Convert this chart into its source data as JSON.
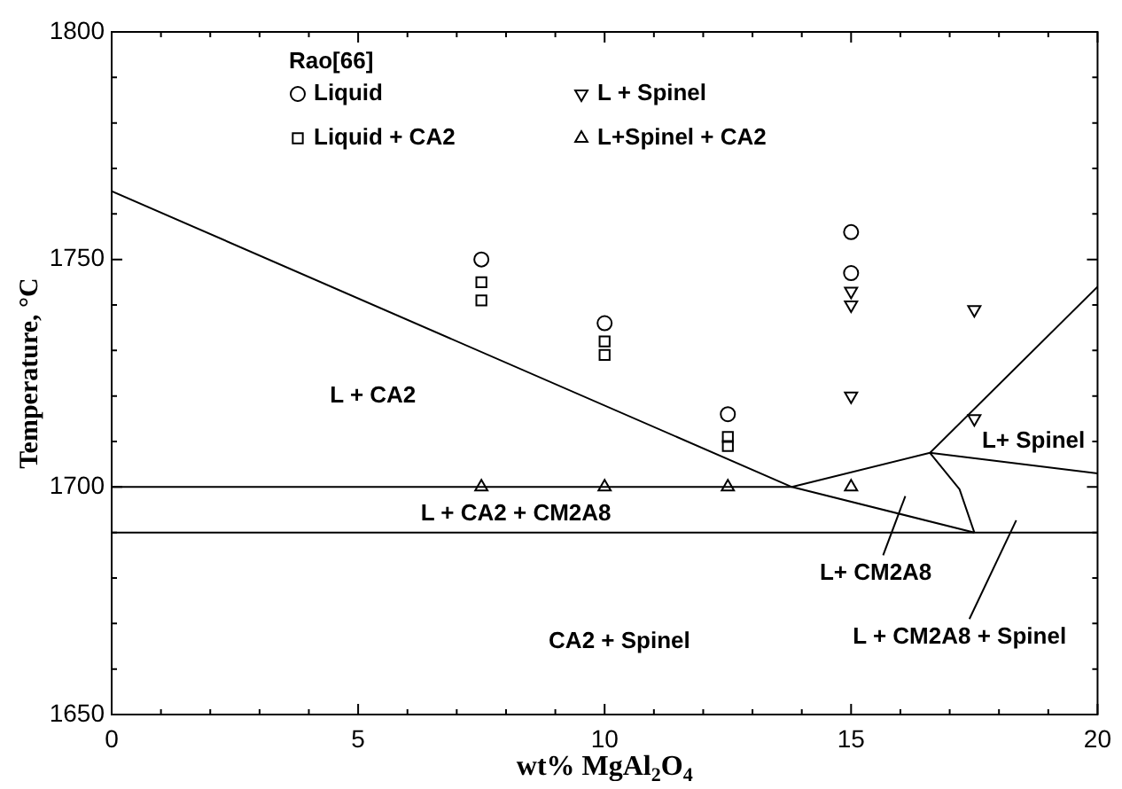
{
  "chart_data": {
    "type": "scatter",
    "xlabel": "wt% MgAl$_{2}$O$_{4}$",
    "ylabel": "Temperature, °C",
    "legend_title": "Rao[66]",
    "legend": "top",
    "grid": false,
    "xlim": [
      0,
      20
    ],
    "ylim": [
      1650,
      1800
    ],
    "xticks": [
      0,
      {
        "value": 1,
        "label": null
      },
      {
        "value": 2,
        "label": null
      },
      {
        "value": 3,
        "label": null
      },
      {
        "value": 4,
        "label": null
      },
      5,
      {
        "value": 6,
        "label": null
      },
      {
        "value": 7,
        "label": null
      },
      {
        "value": 8,
        "label": null
      },
      {
        "value": 9,
        "label": null
      },
      10,
      {
        "value": 11,
        "label": null
      },
      {
        "value": 12,
        "label": null
      },
      {
        "value": 13,
        "label": null
      },
      {
        "value": 14,
        "label": null
      },
      15,
      {
        "value": 16,
        "label": null
      },
      {
        "value": 17,
        "label": null
      },
      {
        "value": 18,
        "label": null
      },
      {
        "value": 19,
        "label": null
      },
      20
    ],
    "yticks": [
      1650,
      {
        "value": 1660,
        "label": null
      },
      {
        "value": 1670,
        "label": null
      },
      {
        "value": 1680,
        "label": null
      },
      {
        "value": 1690,
        "label": null
      },
      1700,
      {
        "value": 1710,
        "label": null
      },
      {
        "value": 1720,
        "label": null
      },
      {
        "value": 1730,
        "label": null
      },
      {
        "value": 1740,
        "label": null
      },
      1750,
      {
        "value": 1760,
        "label": null
      },
      {
        "value": 1770,
        "label": null
      },
      {
        "value": 1780,
        "label": null
      },
      {
        "value": 1790,
        "label": null
      },
      1800
    ],
    "series": [
      {
        "name": "Liquid",
        "marker": "circle",
        "color": "#000000",
        "x": [
          7.5,
          10,
          12.5,
          15,
          15
        ],
        "values": [
          1750,
          1736,
          1716,
          1756,
          1747
        ]
      },
      {
        "name": "Liquid + CA2",
        "marker": "square",
        "color": "#000000",
        "x": [
          7.5,
          7.5,
          10,
          10,
          12.5,
          12.5
        ],
        "values": [
          1745,
          1741,
          1732,
          1729,
          1711,
          1709
        ]
      },
      {
        "name": "L + Spinel",
        "marker": "triangle-down",
        "color": "#000000",
        "x": [
          15,
          15,
          15,
          17.5,
          17.5
        ],
        "values": [
          1743,
          1740,
          1720,
          1739,
          1715
        ]
      },
      {
        "name": "L+Spinel + CA2",
        "marker": "triangle",
        "color": "#000000",
        "x": [
          7.5,
          10,
          12.5,
          15
        ],
        "values": [
          1700,
          1700,
          1700,
          1700
        ]
      },
      {
        "type": "line",
        "marker": "none",
        "color": "#000000",
        "x": [
          0,
          13.8,
          17.5
        ],
        "values": [
          1765,
          1700,
          1690
        ]
      },
      {
        "type": "line",
        "marker": "none",
        "color": "#000000",
        "x": [
          0,
          20
        ],
        "values": [
          1690,
          1690
        ]
      },
      {
        "type": "line",
        "marker": "none",
        "color": "#000000",
        "x": [
          0,
          13.8,
          16.6,
          20
        ],
        "values": [
          1700,
          1700,
          1707.5,
          1744
        ]
      },
      {
        "type": "line",
        "marker": "none",
        "color": "#000000",
        "x": [
          16.6,
          20
        ],
        "values": [
          1707.5,
          1703
        ]
      },
      {
        "type": "line",
        "marker": "none",
        "color": "#000000",
        "x": [
          16.6,
          17.2,
          17.5
        ],
        "values": [
          1707.5,
          1699.5,
          1690
        ]
      },
      {
        "type": "line",
        "marker": "none",
        "color": "#000000",
        "x": [
          15.65,
          16.1
        ],
        "values": [
          1685,
          1698
        ]
      },
      {
        "type": "line",
        "marker": "none",
        "color": "#000000",
        "x": [
          17.4,
          18.35
        ],
        "values": [
          1671,
          1692.7
        ]
      }
    ],
    "annotations": [
      "L + CA2",
      "L + CA2 + CM2A8",
      "L+ CM2A8",
      "CA2 + Spinel",
      "L + CM2A8 + Spinel",
      "L+ Spinel"
    ]
  }
}
